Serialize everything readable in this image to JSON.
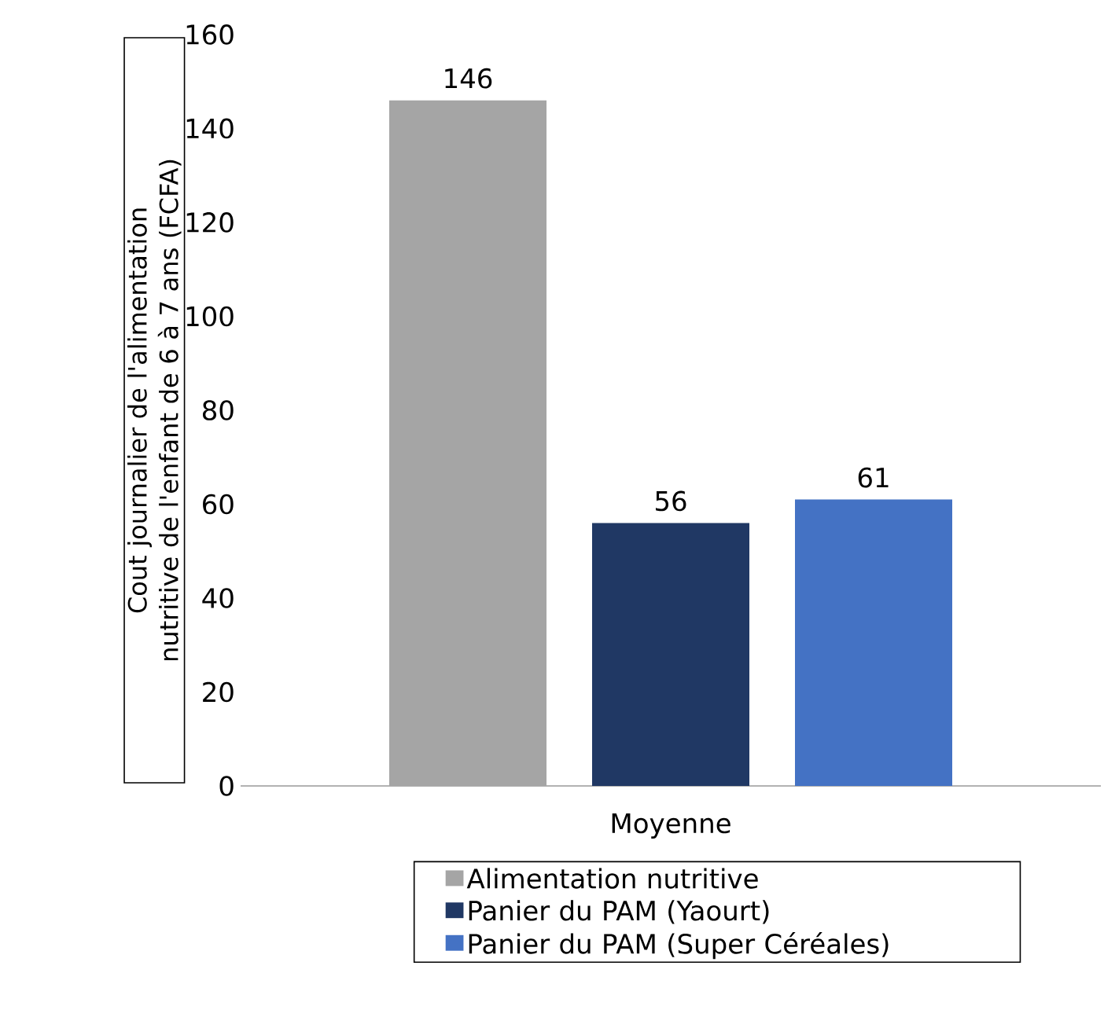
{
  "chart_data": {
    "type": "bar",
    "ylabel": "Cout journalier de l'alimentation nutritive de l'enfant de 6 à 7 ans (FCFA)",
    "categories": [
      "Moyenne"
    ],
    "series": [
      {
        "name": "Alimentation nutritive",
        "color": "#a5a5a5",
        "values": [
          146
        ]
      },
      {
        "name": "Panier du PAM (Yaourt)",
        "color": "#203864",
        "values": [
          56
        ]
      },
      {
        "name": "Panier du PAM (Super Céréales)",
        "color": "#4472c4",
        "values": [
          61
        ]
      }
    ],
    "ylim": [
      0,
      160
    ],
    "yticks": [
      0,
      20,
      40,
      60,
      80,
      100,
      120,
      140,
      160
    ],
    "data_labels": true,
    "legend": "bottom",
    "grid": false
  }
}
